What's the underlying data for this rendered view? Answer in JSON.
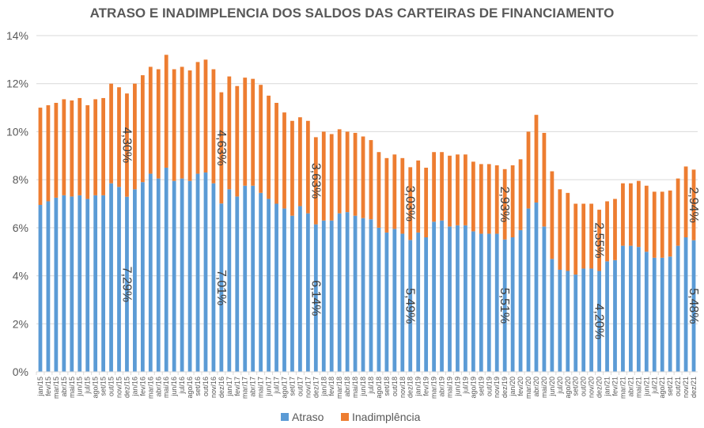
{
  "chart_data": {
    "type": "bar",
    "stacked": true,
    "title": "ATRASO E INADIMPLENCIA DOS SALDOS DAS CARTEIRAS DE FINANCIAMENTO",
    "xlabel": "",
    "ylabel": "",
    "ylim": [
      0,
      14
    ],
    "yticks": [
      "0%",
      "2%",
      "4%",
      "6%",
      "8%",
      "10%",
      "12%",
      "14%"
    ],
    "ytick_values": [
      0,
      2,
      4,
      6,
      8,
      10,
      12,
      14
    ],
    "grid": true,
    "legend_position": "bottom",
    "categories": [
      "jan/15",
      "fev/15",
      "mar/15",
      "abr/15",
      "mai/15",
      "jun/15",
      "jul/15",
      "ago/15",
      "set/15",
      "out/15",
      "nov/15",
      "dez/15",
      "jan/16",
      "fev/16",
      "mar/16",
      "abr/16",
      "mai/16",
      "jun/16",
      "jul/16",
      "ago/16",
      "set/16",
      "out/16",
      "nov/16",
      "dez/16",
      "jan/17",
      "fev/17",
      "mar/17",
      "abr/17",
      "mai/17",
      "jun/17",
      "jul/17",
      "ago/17",
      "set/17",
      "out/17",
      "nov/17",
      "dez/17",
      "jan/18",
      "fev/18",
      "mar/18",
      "abr/18",
      "mai/18",
      "jun/18",
      "jul/18",
      "ago/18",
      "set/18",
      "out/18",
      "nov/18",
      "dez/18",
      "jan/19",
      "fev/19",
      "mar/19",
      "abr/19",
      "mai/19",
      "jun/19",
      "jul/19",
      "ago/19",
      "set/19",
      "out/19",
      "nov/19",
      "dez/19",
      "jan/20",
      "fev/20",
      "mar/20",
      "abr/20",
      "mai/20",
      "jun/20",
      "jul/20",
      "ago/20",
      "set/20",
      "out/20",
      "nov/20",
      "dez/20",
      "jan/21",
      "fev/21",
      "mar/21",
      "abr/21",
      "mai/21",
      "jun/21",
      "jul/21",
      "ago/21",
      "set/21",
      "out/21",
      "nov/21",
      "dez/21"
    ],
    "series": [
      {
        "name": "Atraso",
        "color": "#5B9BD5",
        "values": [
          6.95,
          7.1,
          7.25,
          7.35,
          7.3,
          7.35,
          7.2,
          7.35,
          7.35,
          7.85,
          7.7,
          7.29,
          7.6,
          7.9,
          8.25,
          8.05,
          8.5,
          7.95,
          8.05,
          7.95,
          8.25,
          8.3,
          7.85,
          7.01,
          7.6,
          7.3,
          7.75,
          7.75,
          7.45,
          7.2,
          7.0,
          6.8,
          6.5,
          6.9,
          6.6,
          6.14,
          6.3,
          6.3,
          6.6,
          6.65,
          6.5,
          6.4,
          6.35,
          6.0,
          5.8,
          5.95,
          5.75,
          5.49,
          5.8,
          5.6,
          6.25,
          6.3,
          6.05,
          6.1,
          6.1,
          5.85,
          5.75,
          5.75,
          5.75,
          5.51,
          5.6,
          5.9,
          6.8,
          7.05,
          6.05,
          4.7,
          4.25,
          4.2,
          4.05,
          4.3,
          4.3,
          4.2,
          4.6,
          4.65,
          5.25,
          5.25,
          5.2,
          5.0,
          4.75,
          4.75,
          4.8,
          5.25,
          5.6,
          5.48
        ]
      },
      {
        "name": "Inadimplência",
        "color": "#ED7D31",
        "values": [
          4.05,
          4.0,
          3.95,
          4.0,
          4.0,
          4.05,
          3.9,
          4.0,
          4.05,
          4.15,
          4.15,
          4.3,
          4.4,
          4.45,
          4.45,
          4.55,
          4.7,
          4.65,
          4.65,
          4.6,
          4.65,
          4.7,
          4.75,
          4.63,
          4.7,
          4.6,
          4.5,
          4.45,
          4.5,
          4.3,
          4.2,
          4.0,
          3.95,
          3.7,
          3.85,
          3.63,
          3.7,
          3.6,
          3.5,
          3.35,
          3.45,
          3.4,
          3.3,
          3.15,
          3.1,
          3.1,
          3.15,
          3.03,
          3.0,
          2.9,
          2.9,
          2.85,
          2.95,
          2.95,
          2.95,
          2.9,
          2.9,
          2.9,
          2.85,
          2.93,
          3.0,
          2.95,
          3.2,
          3.65,
          3.9,
          3.65,
          3.35,
          3.25,
          2.95,
          2.7,
          2.7,
          2.55,
          2.5,
          2.55,
          2.6,
          2.6,
          2.75,
          2.75,
          2.75,
          2.75,
          2.75,
          2.8,
          2.95,
          2.94
        ]
      }
    ],
    "data_labels": [
      {
        "category": "dez/15",
        "series": "Atraso",
        "text": "7,29%"
      },
      {
        "category": "dez/15",
        "series": "Inadimplência",
        "text": "4,30%"
      },
      {
        "category": "dez/16",
        "series": "Atraso",
        "text": "7,01%"
      },
      {
        "category": "dez/16",
        "series": "Inadimplência",
        "text": "4,63%"
      },
      {
        "category": "dez/17",
        "series": "Atraso",
        "text": "6,14%"
      },
      {
        "category": "dez/17",
        "series": "Inadimplência",
        "text": "3,63%"
      },
      {
        "category": "dez/18",
        "series": "Atraso",
        "text": "5,49%"
      },
      {
        "category": "dez/18",
        "series": "Inadimplência",
        "text": "3,03%"
      },
      {
        "category": "dez/19",
        "series": "Atraso",
        "text": "5,51%"
      },
      {
        "category": "dez/19",
        "series": "Inadimplência",
        "text": "2,93%"
      },
      {
        "category": "dez/20",
        "series": "Atraso",
        "text": "4,20%"
      },
      {
        "category": "dez/20",
        "series": "Inadimplência",
        "text": "2,55%"
      },
      {
        "category": "dez/21",
        "series": "Atraso",
        "text": "5,48%"
      },
      {
        "category": "dez/21",
        "series": "Inadimplência",
        "text": "2,94%"
      }
    ],
    "legend": [
      "Atraso",
      "Inadimplência"
    ]
  },
  "colors": {
    "gridline": "#D9D9D9",
    "text": "#595959"
  }
}
